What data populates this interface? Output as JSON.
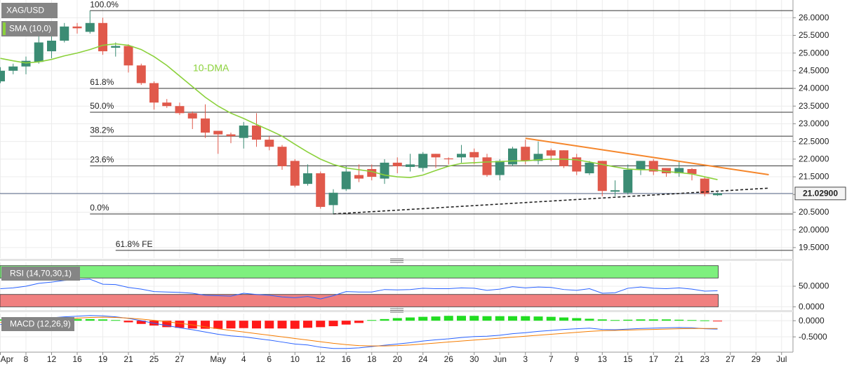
{
  "chart_data": [
    {
      "type": "candlestick",
      "series": [
        {
          "name": "XAG/USD",
          "up_color": "#3b8c74",
          "down_color": "#e0594b",
          "open": [
            24.2,
            24.5,
            24.62,
            24.75,
            25.05,
            25.35,
            25.75,
            25.6,
            25.85,
            25.15,
            25.2,
            24.65,
            24.15,
            23.6,
            23.5,
            23.3,
            23.15,
            22.8,
            22.7,
            22.6,
            22.95,
            22.55,
            22.35,
            21.95,
            21.3,
            21.6,
            20.7,
            21.15,
            21.55,
            21.72,
            21.45,
            21.9,
            21.78,
            21.75,
            22.15,
            22.02,
            22.05,
            22.2,
            22.05,
            21.55,
            21.85,
            22.35,
            21.95,
            22.25,
            22.25,
            22.05,
            21.6,
            21.95,
            21.08,
            21.05,
            21.7,
            21.95,
            21.75,
            21.6,
            21.72,
            21.45,
            20.98,
            null,
            null,
            null,
            null,
            null
          ],
          "high": [
            24.6,
            24.7,
            24.9,
            25.6,
            25.6,
            25.85,
            25.85,
            26.2,
            26.0,
            25.3,
            25.25,
            24.7,
            24.2,
            23.7,
            23.6,
            23.35,
            23.55,
            22.8,
            22.75,
            23.05,
            23.3,
            22.65,
            22.4,
            22.0,
            21.85,
            21.65,
            21.15,
            21.8,
            21.85,
            21.85,
            22.0,
            22.05,
            22.15,
            22.2,
            22.15,
            22.05,
            22.4,
            22.3,
            22.15,
            22.0,
            22.35,
            22.55,
            22.5,
            22.3,
            22.25,
            22.15,
            21.95,
            21.95,
            21.4,
            21.85,
            21.95,
            22.0,
            21.75,
            21.95,
            21.75,
            21.5,
            21.06,
            null,
            null,
            null,
            null,
            null
          ],
          "low": [
            24.15,
            24.4,
            24.4,
            24.7,
            24.85,
            25.3,
            25.55,
            25.55,
            24.95,
            24.9,
            24.45,
            24.1,
            23.4,
            23.45,
            23.25,
            22.85,
            22.6,
            22.15,
            22.45,
            22.3,
            22.35,
            22.25,
            21.7,
            21.2,
            21.25,
            20.6,
            20.45,
            21.1,
            21.35,
            21.4,
            21.3,
            21.6,
            21.65,
            21.65,
            21.75,
            21.85,
            21.9,
            21.85,
            21.5,
            21.4,
            21.8,
            21.85,
            21.85,
            21.95,
            21.75,
            21.55,
            21.55,
            20.95,
            20.95,
            21.0,
            21.55,
            21.55,
            21.5,
            21.5,
            21.4,
            20.95,
            20.96,
            null,
            null,
            null,
            null,
            null
          ],
          "close": [
            24.5,
            24.62,
            24.78,
            25.3,
            25.35,
            25.75,
            25.7,
            25.85,
            25.05,
            25.2,
            24.65,
            24.15,
            23.6,
            23.5,
            23.3,
            23.15,
            22.75,
            22.7,
            22.65,
            22.95,
            22.55,
            22.35,
            21.8,
            21.25,
            21.6,
            20.65,
            21.05,
            21.65,
            21.45,
            21.5,
            21.9,
            21.8,
            21.85,
            22.15,
            22.05,
            22.0,
            22.15,
            22.05,
            21.55,
            21.95,
            22.3,
            21.95,
            22.15,
            22.1,
            21.8,
            21.65,
            21.9,
            21.1,
            21.12,
            21.7,
            21.95,
            21.65,
            21.6,
            21.75,
            21.58,
            21.02,
            21.03,
            null,
            null,
            null,
            null,
            null
          ]
        },
        {
          "name": "SMA (10,0)",
          "color": "#8bd13b",
          "annotation": "10-DMA",
          "values": [
            24.85,
            24.78,
            24.72,
            24.75,
            24.82,
            24.92,
            25.0,
            25.1,
            25.22,
            25.26,
            25.22,
            25.1,
            24.9,
            24.65,
            24.35,
            24.05,
            23.75,
            23.5,
            23.3,
            23.15,
            22.98,
            22.82,
            22.65,
            22.42,
            22.2,
            22.0,
            21.85,
            21.75,
            21.7,
            21.65,
            21.55,
            21.5,
            21.48,
            21.55,
            21.68,
            21.8,
            21.88,
            21.9,
            21.92,
            21.93,
            21.95,
            21.95,
            21.98,
            22.0,
            22.0,
            21.98,
            21.92,
            21.85,
            21.78,
            21.72,
            21.7,
            21.7,
            21.65,
            21.62,
            21.58,
            21.5,
            21.42,
            null,
            null,
            null,
            null,
            null
          ]
        }
      ],
      "levels": [
        {
          "label": "100.0%",
          "price": 26.2,
          "start_index": 7
        },
        {
          "label": "61.8%",
          "price": 24.0,
          "start_index": 7
        },
        {
          "label": "50.0%",
          "price": 23.325,
          "start_index": 7
        },
        {
          "label": "38.2%",
          "price": 22.65,
          "start_index": 7
        },
        {
          "label": "23.6%",
          "price": 21.81,
          "start_index": 7
        },
        {
          "label": "0.0%",
          "price": 20.45,
          "start_index": 7
        },
        {
          "label": "61.8% FE",
          "price": 19.42,
          "start_index": 9
        }
      ],
      "trendlines": [
        {
          "color": "#f5862b",
          "dashed": false,
          "points": [
            [
              41,
              22.59
            ],
            [
              60,
              21.56
            ]
          ]
        },
        {
          "color": "#222222",
          "dashed": true,
          "points": [
            [
              26,
              20.45
            ],
            [
              60,
              21.18
            ]
          ]
        }
      ],
      "last_price": {
        "value": 21.029,
        "label": "21.02900"
      },
      "ylim": [
        19.2,
        26.5
      ],
      "yticks": [
        {
          "value": 26.0,
          "label": "26.0000"
        },
        {
          "value": 25.5,
          "label": "25.5000"
        },
        {
          "value": 25.0,
          "label": "25.0000"
        },
        {
          "value": 24.5,
          "label": "24.5000"
        },
        {
          "value": 24.0,
          "label": "24.0000"
        },
        {
          "value": 23.5,
          "label": "23.5000"
        },
        {
          "value": 23.0,
          "label": "23.0000"
        },
        {
          "value": 22.5,
          "label": "22.5000"
        },
        {
          "value": 22.0,
          "label": "22.0000"
        },
        {
          "value": 21.5,
          "label": "21.5000"
        },
        {
          "value": 21.0,
          "label": "21.0000"
        },
        {
          "value": 20.5,
          "label": "20.5000"
        },
        {
          "value": 20.0,
          "label": "20.0000"
        },
        {
          "value": 19.5,
          "label": "19.5000"
        }
      ],
      "grid": true
    },
    {
      "type": "line",
      "title": "RSI (14,70,30,1)",
      "series": [
        {
          "color": "#2962ff",
          "values": [
            44,
            46,
            50,
            57,
            60,
            64,
            66,
            67,
            55,
            54,
            47,
            43,
            37,
            36,
            35,
            33,
            28,
            27,
            26,
            33,
            30,
            28,
            24,
            22,
            25,
            19,
            27,
            37,
            36,
            36,
            42,
            41,
            42,
            45,
            44,
            44,
            46,
            45,
            40,
            43,
            49,
            46,
            48,
            47,
            42,
            40,
            44,
            33,
            34,
            45,
            48,
            45,
            44,
            46,
            43,
            38,
            39,
            null,
            null,
            null,
            null,
            null
          ]
        }
      ],
      "bands": [
        {
          "from": 70,
          "to": 100,
          "color": "#7ef07e"
        },
        {
          "from": 0,
          "to": 30,
          "color": "#f08080"
        }
      ],
      "ylim": [
        -8,
        108
      ],
      "yticks": [
        {
          "value": 50,
          "label": "50.0000"
        },
        {
          "value": 0,
          "label": "0.0000"
        }
      ],
      "grid": true
    },
    {
      "type": "macd",
      "title": "MACD (12,26,9)",
      "categories": [
        "Apr",
        null,
        "8",
        null,
        "12",
        null,
        "16",
        null,
        "19",
        null,
        "21",
        null,
        "25",
        null,
        "27",
        null,
        null,
        "May",
        null,
        "4",
        null,
        "6",
        null,
        "10",
        null,
        "12",
        null,
        "16",
        null,
        "18",
        null,
        "20",
        null,
        "24",
        null,
        "26",
        null,
        "30",
        null,
        "Jun",
        null,
        "3",
        null,
        "7",
        null,
        "9",
        null,
        "13",
        null,
        "15",
        null,
        "17",
        null,
        "21",
        null,
        "23",
        null,
        "27",
        null,
        "29",
        null,
        "Jul"
      ],
      "histogram": {
        "up_color": "#22dd22",
        "down_color": "#ff1a1a",
        "values": [
          0.04,
          0.05,
          0.06,
          0.06,
          0.06,
          0.06,
          0.05,
          0.05,
          0.04,
          0.02,
          -0.05,
          -0.1,
          -0.15,
          -0.2,
          -0.22,
          -0.24,
          -0.25,
          -0.25,
          -0.24,
          -0.23,
          -0.24,
          -0.24,
          -0.24,
          -0.25,
          -0.22,
          -0.2,
          -0.17,
          -0.12,
          -0.07,
          0.02,
          0.05,
          0.08,
          0.1,
          0.12,
          0.13,
          0.15,
          0.15,
          0.15,
          0.14,
          0.14,
          0.14,
          0.14,
          0.13,
          0.12,
          0.1,
          0.08,
          0.06,
          0.04,
          0.02,
          0.03,
          0.04,
          0.04,
          0.04,
          0.03,
          0.02,
          0.01,
          -0.02,
          null,
          null,
          null,
          null,
          null
        ]
      },
      "series": [
        {
          "color": "#2962ff",
          "values": [
            -0.12,
            -0.06,
            0.0,
            0.05,
            0.09,
            0.12,
            0.14,
            0.16,
            0.15,
            0.12,
            0.07,
            0.0,
            -0.08,
            -0.15,
            -0.22,
            -0.28,
            -0.35,
            -0.42,
            -0.47,
            -0.5,
            -0.55,
            -0.6,
            -0.66,
            -0.72,
            -0.75,
            -0.82,
            -0.86,
            -0.86,
            -0.84,
            -0.8,
            -0.76,
            -0.72,
            -0.68,
            -0.63,
            -0.59,
            -0.56,
            -0.52,
            -0.49,
            -0.48,
            -0.45,
            -0.4,
            -0.37,
            -0.33,
            -0.3,
            -0.27,
            -0.25,
            -0.23,
            -0.27,
            -0.28,
            -0.26,
            -0.24,
            -0.23,
            -0.22,
            -0.21,
            -0.22,
            -0.25,
            -0.26,
            null,
            null,
            null,
            null,
            null
          ]
        },
        {
          "color": "#f57c00",
          "values": [
            -0.05,
            -0.04,
            -0.03,
            -0.01,
            0.02,
            0.05,
            0.08,
            0.1,
            0.11,
            0.1,
            0.08,
            0.05,
            0.01,
            -0.03,
            -0.08,
            -0.13,
            -0.19,
            -0.25,
            -0.3,
            -0.35,
            -0.4,
            -0.45,
            -0.5,
            -0.55,
            -0.6,
            -0.65,
            -0.7,
            -0.74,
            -0.77,
            -0.78,
            -0.78,
            -0.77,
            -0.75,
            -0.72,
            -0.69,
            -0.66,
            -0.63,
            -0.6,
            -0.57,
            -0.54,
            -0.51,
            -0.48,
            -0.45,
            -0.42,
            -0.39,
            -0.36,
            -0.33,
            -0.31,
            -0.3,
            -0.29,
            -0.28,
            -0.27,
            -0.26,
            -0.25,
            -0.24,
            -0.24,
            -0.24,
            null,
            null,
            null,
            null,
            null
          ]
        }
      ],
      "ylim": [
        -0.93,
        0.22
      ],
      "yticks": [
        {
          "value": 0,
          "label": "0.0000"
        },
        {
          "value": -0.5,
          "label": "-0.5000"
        }
      ],
      "grid": true
    }
  ]
}
